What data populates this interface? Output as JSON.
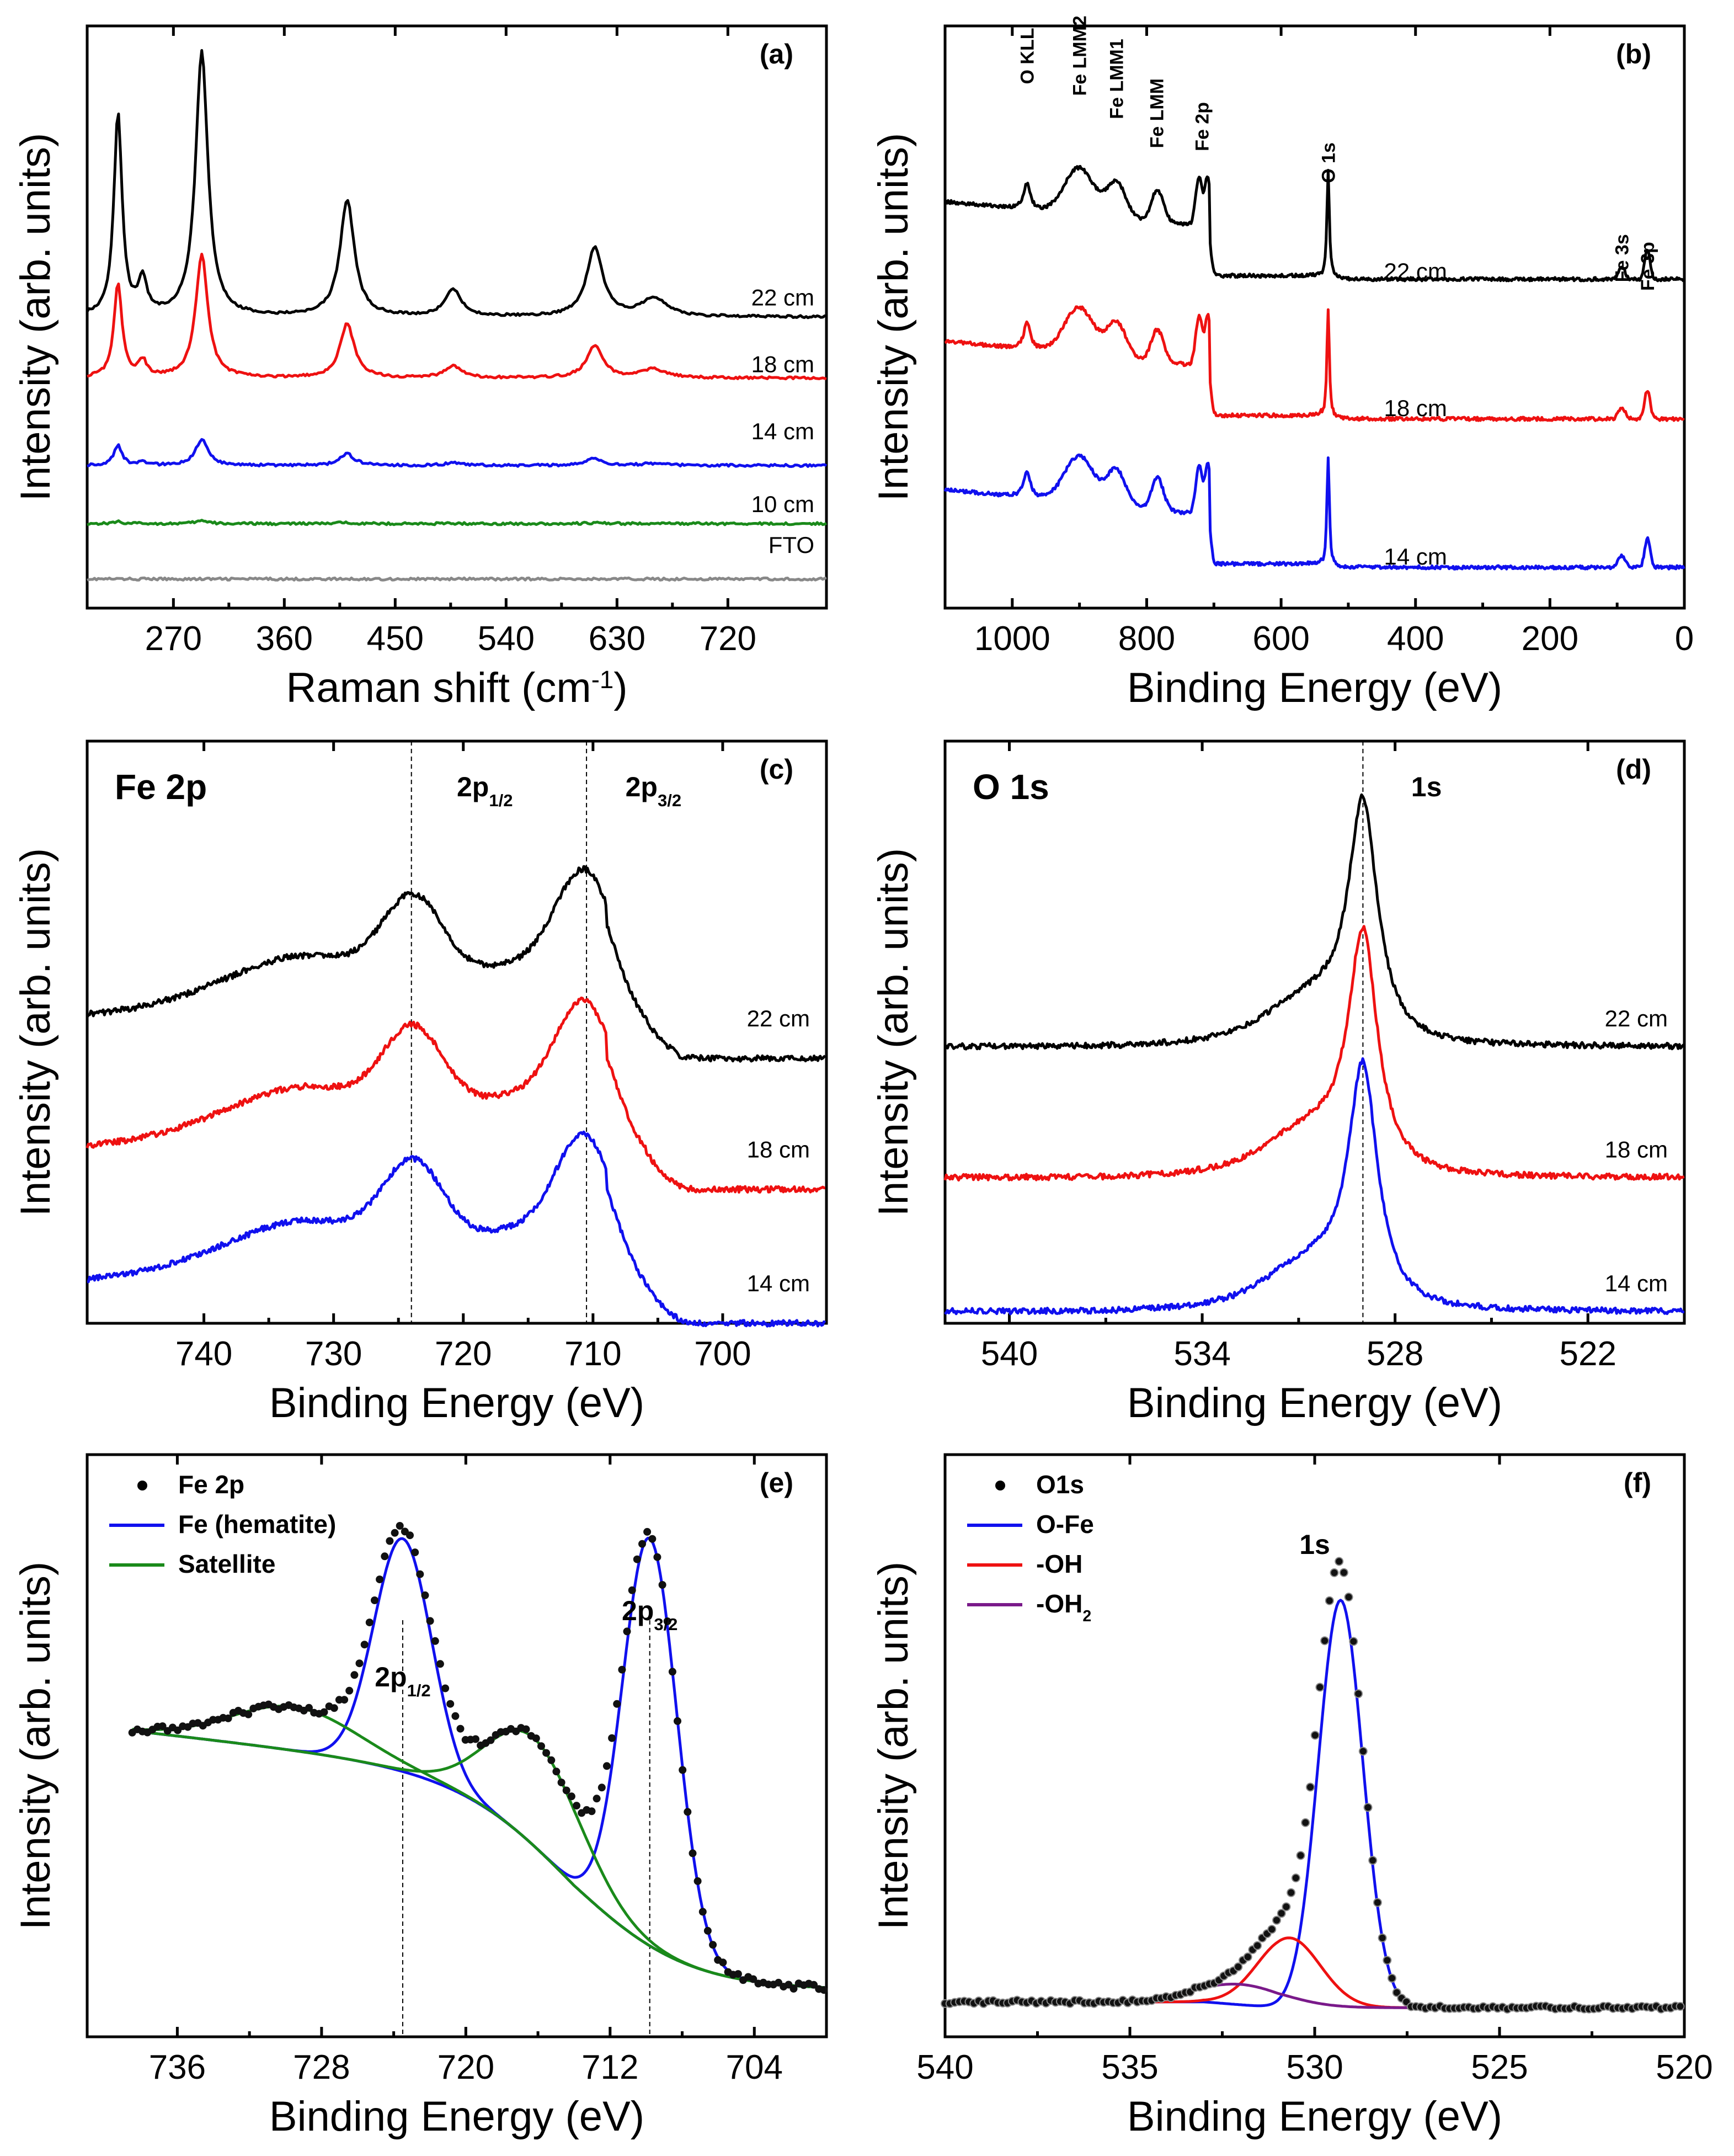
{
  "figure": {
    "panels": [
      "a",
      "b",
      "c",
      "d",
      "e",
      "f"
    ]
  },
  "chart_data": [
    {
      "id": "a",
      "type": "line",
      "panel_label": "(a)",
      "xlabel": "Raman shift (cm",
      "xlabel_sup": "-1",
      "xlabel_end": ")",
      "ylabel": "Intensity (arb. units)",
      "xlim": [
        200,
        800
      ],
      "xticks": [
        270,
        360,
        450,
        540,
        630,
        720
      ],
      "ylim": [
        0,
        1
      ],
      "peaks": [
        225,
        245,
        293,
        411,
        497,
        612,
        660
      ],
      "series": [
        {
          "name": "FTO",
          "color": "#888888",
          "baseline": 0.05,
          "scale": 0.0
        },
        {
          "name": "10 cm",
          "color": "#1a8a1a",
          "baseline": 0.145,
          "scale": 0.01
        },
        {
          "name": "14 cm",
          "color": "#1010ee",
          "baseline": 0.245,
          "scale": 0.09
        },
        {
          "name": "18 cm",
          "color": "#ee1111",
          "baseline": 0.395,
          "scale": 0.42
        },
        {
          "name": "22 cm",
          "color": "#000000",
          "baseline": 0.5,
          "scale": 0.91
        }
      ],
      "peak_heights": [
        0.76,
        0.13,
        1.0,
        0.44,
        0.1,
        0.26,
        0.07
      ],
      "peak_widths": [
        4,
        4,
        6,
        7,
        8,
        8,
        12
      ],
      "label_values": [
        0.095,
        0.165,
        0.29,
        0.405,
        0.52
      ]
    },
    {
      "id": "b",
      "type": "line",
      "panel_label": "(b)",
      "xlabel": "Binding Energy (eV)",
      "ylabel": "Intensity (arb. units)",
      "xlim": [
        1100,
        0
      ],
      "xticks": [
        1000,
        800,
        600,
        400,
        200,
        0
      ],
      "ylim": [
        0,
        1
      ],
      "series": [
        {
          "name": "14 cm",
          "color": "#1010ee",
          "offset": 0.0
        },
        {
          "name": "18 cm",
          "color": "#ee1111",
          "offset": 0.255
        },
        {
          "name": "22 cm",
          "color": "#000000",
          "offset": 0.495
        }
      ],
      "label_values": [
        0.075,
        0.33,
        0.565
      ],
      "annotations": [
        {
          "text": "O KLL",
          "x": 978
        },
        {
          "text": "Fe LMM2",
          "x": 900
        },
        {
          "text": "Fe LMM1",
          "x": 845
        },
        {
          "text": "Fe LMM",
          "x": 785
        },
        {
          "text": "Fe 2p",
          "x": 718
        },
        {
          "text": "O 1s",
          "x": 530
        },
        {
          "text": "Fe 3s",
          "x": 93
        },
        {
          "text": "Fe 3p",
          "x": 55
        }
      ]
    },
    {
      "id": "c",
      "type": "line",
      "panel_label": "(c)",
      "title": "Fe 2p",
      "xlabel": "Binding Energy (eV)",
      "ylabel": "Intensity (arb. units)",
      "xlim": [
        749,
        692
      ],
      "xticks": [
        740,
        730,
        720,
        710,
        700
      ],
      "ylim": [
        0,
        1
      ],
      "series": [
        {
          "name": "14 cm",
          "color": "#1010ee",
          "offset": 0.0
        },
        {
          "name": "18 cm",
          "color": "#ee1111",
          "offset": 0.23
        },
        {
          "name": "22 cm",
          "color": "#000000",
          "offset": 0.455
        }
      ],
      "label_values": [
        0.055,
        0.285,
        0.51
      ],
      "ref_lines": [
        724.0,
        710.5
      ],
      "peak_labels": [
        {
          "main": "2p",
          "sub": "1/2",
          "x": 720.5
        },
        {
          "main": "2p",
          "sub": "3/2",
          "x": 707.5
        }
      ]
    },
    {
      "id": "d",
      "type": "line",
      "panel_label": "(d)",
      "title": "O 1s",
      "xlabel": "Binding Energy (eV)",
      "ylabel": "Intensity (arb. units)",
      "xlim": [
        542,
        519
      ],
      "xticks": [
        540,
        534,
        528,
        522
      ],
      "ylim": [
        0,
        1
      ],
      "series": [
        {
          "name": "14 cm",
          "color": "#1010ee",
          "offset": 0.0
        },
        {
          "name": "18 cm",
          "color": "#ee1111",
          "offset": 0.23
        },
        {
          "name": "22 cm",
          "color": "#000000",
          "offset": 0.455
        }
      ],
      "label_values": [
        0.055,
        0.285,
        0.51
      ],
      "ref_lines": [
        529.0
      ],
      "peak_labels": [
        {
          "main": "1s",
          "sub": "",
          "x": 527.5
        }
      ]
    },
    {
      "id": "e",
      "type": "line",
      "panel_label": "(e)",
      "xlabel": "Binding Energy (eV)",
      "ylabel": "Intensity (arb. units)",
      "xlim": [
        741,
        700
      ],
      "xticks": [
        736,
        728,
        720,
        712,
        704
      ],
      "ylim": [
        0,
        1
      ],
      "legend": [
        {
          "name": "Fe 2p",
          "kind": "marker",
          "color": "#000000"
        },
        {
          "name": "Fe (hematite)",
          "kind": "line",
          "color": "#1010ee"
        },
        {
          "name": "Satellite",
          "kind": "line",
          "color": "#1a8a1a"
        }
      ],
      "ref_lines": [
        723.5,
        709.8
      ],
      "peak_labels": [
        {
          "main": "2p",
          "sub": "1/2",
          "x": 723.5
        },
        {
          "main": "2p",
          "sub": "3/2",
          "x": 709.8
        }
      ]
    },
    {
      "id": "f",
      "type": "line",
      "panel_label": "(f)",
      "xlabel": "Binding Energy (eV)",
      "ylabel": "Intensity (arb. units)",
      "xlim": [
        540,
        520
      ],
      "xticks": [
        540,
        535,
        530,
        525,
        520
      ],
      "ylim": [
        0,
        1
      ],
      "legend": [
        {
          "name": "O1s",
          "kind": "marker",
          "color": "#000000"
        },
        {
          "name": "O-Fe",
          "kind": "line",
          "color": "#1010ee"
        },
        {
          "name": "-OH",
          "kind": "line",
          "color": "#ee1111"
        },
        {
          "name": "-OH",
          "sub": "2",
          "kind": "line",
          "color": "#7a1a8a"
        }
      ],
      "peak_labels": [
        {
          "main": "1s",
          "sub": "",
          "x": 530.0
        }
      ]
    }
  ]
}
